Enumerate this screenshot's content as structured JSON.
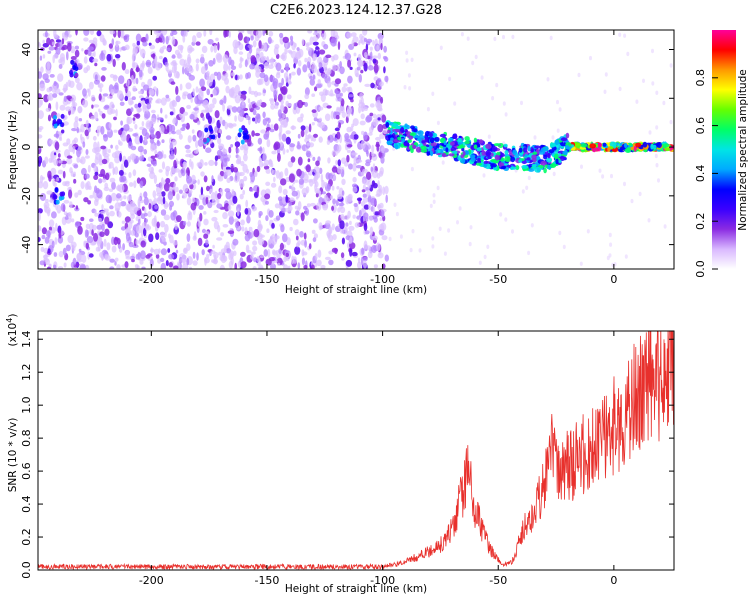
{
  "title": "C2E6.2023.124.12.37.G28",
  "chart_data": [
    {
      "type": "heatmap",
      "xlabel": "Height of straight line (km)",
      "ylabel": "Frequency (Hz)",
      "xlim": [
        -249,
        26
      ],
      "ylim": [
        -50,
        48
      ],
      "xticks": [
        -200,
        -150,
        -100,
        -50,
        0
      ],
      "yticks": [
        -40,
        -20,
        0,
        20,
        40
      ],
      "colorbar": {
        "label": "Normalized spectral amplitude",
        "range": [
          0,
          1
        ],
        "ticks": [
          0.0,
          0.2,
          0.4,
          0.6,
          0.8
        ],
        "colors": [
          "#ffffff",
          "#d9b8ff",
          "#8a2be2",
          "#3a00ff",
          "#0000ff",
          "#00aaff",
          "#00e5e5",
          "#00ff66",
          "#66ff00",
          "#ffff00",
          "#ff9900",
          "#ff0000",
          "#ff0099"
        ]
      },
      "track": {
        "x": [
          -98,
          -90,
          -80,
          -70,
          -60,
          -50,
          -40,
          -30,
          -20,
          -10,
          0,
          10,
          26
        ],
        "y": [
          6,
          4,
          2,
          0,
          -2,
          -4,
          -4,
          -5,
          0,
          0,
          0,
          0,
          0
        ]
      },
      "noise_region_x": [
        -249,
        -98
      ]
    },
    {
      "type": "line",
      "xlabel": "Height of straight line (km)",
      "ylabel": "SNR (10 * v/v)",
      "yscale_label": "(x10",
      "yscale_exp": "4",
      "xlim": [
        -249,
        26
      ],
      "ylim": [
        0,
        1.45
      ],
      "xticks": [
        -200,
        -150,
        -100,
        -50,
        0
      ],
      "yticks": [
        0.0,
        0.2,
        0.4,
        0.6,
        0.8,
        1.0,
        1.2,
        1.4
      ],
      "series": [
        {
          "color": "#e8302c",
          "x": [
            -249,
            -200,
            -150,
            -110,
            -100,
            -95,
            -90,
            -85,
            -80,
            -75,
            -70,
            -66,
            -63,
            -60,
            -58,
            -56,
            -54,
            -52,
            -50,
            -48,
            -46,
            -44,
            -42,
            -40,
            -35,
            -30,
            -27,
            -25,
            -22,
            -20,
            -18,
            -15,
            -10,
            -5,
            0,
            5,
            10,
            15,
            20,
            26
          ],
          "y": [
            0.02,
            0.02,
            0.02,
            0.02,
            0.02,
            0.03,
            0.05,
            0.08,
            0.11,
            0.15,
            0.25,
            0.45,
            0.6,
            0.38,
            0.3,
            0.2,
            0.14,
            0.1,
            0.06,
            0.04,
            0.03,
            0.05,
            0.12,
            0.22,
            0.35,
            0.5,
            0.75,
            0.62,
            0.6,
            0.66,
            0.63,
            0.7,
            0.72,
            0.8,
            0.88,
            0.95,
            1.05,
            1.12,
            1.18,
            1.26
          ]
        }
      ]
    }
  ]
}
